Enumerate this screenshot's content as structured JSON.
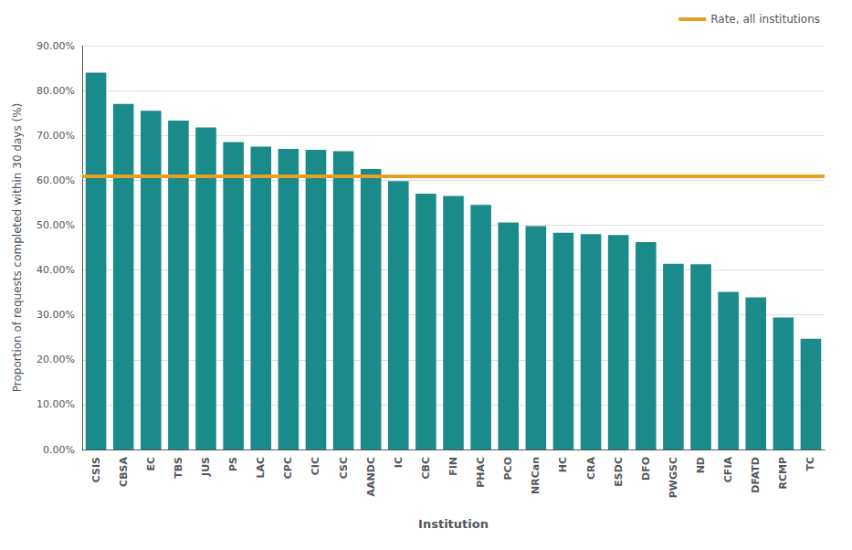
{
  "chart_data": {
    "type": "bar",
    "xlabel": "Institution",
    "ylabel": "Proportion of requests completed within 30 days (%)",
    "categories": [
      "CSIS",
      "CBSA",
      "EC",
      "TBS",
      "JUS",
      "PS",
      "LAC",
      "CPC",
      "CIC",
      "CSC",
      "AANDC",
      "IC",
      "CBC",
      "FIN",
      "PHAC",
      "PCO",
      "NRCan",
      "HC",
      "CRA",
      "ESDC",
      "DFO",
      "PWGSC",
      "ND",
      "CFIA",
      "DFATD",
      "RCMP",
      "TC"
    ],
    "values": [
      0.84,
      0.77,
      0.755,
      0.733,
      0.718,
      0.685,
      0.675,
      0.67,
      0.668,
      0.665,
      0.625,
      0.598,
      0.57,
      0.565,
      0.545,
      0.506,
      0.498,
      0.483,
      0.48,
      0.478,
      0.462,
      0.414,
      0.413,
      0.351,
      0.339,
      0.294,
      0.247
    ],
    "color": "#1a8a8a",
    "reference_line": {
      "value": 0.61,
      "label": "Rate, all institutions",
      "color": "#E8A020"
    },
    "ylim": [
      0.0,
      0.9
    ],
    "yticks": [
      {
        "value": 0.0,
        "label": "0.00%"
      },
      {
        "value": 0.1,
        "label": "10.00%"
      },
      {
        "value": 0.2,
        "label": "20.00%"
      },
      {
        "value": 0.3,
        "label": "30.00%"
      },
      {
        "value": 0.4,
        "label": "40.00%"
      },
      {
        "value": 0.5,
        "label": "50.00%"
      },
      {
        "value": 0.6,
        "label": "60.00%"
      },
      {
        "value": 0.7,
        "label": "70.00%"
      },
      {
        "value": 0.8,
        "label": "80.00%"
      },
      {
        "value": 0.9,
        "label": "90.00%"
      }
    ],
    "grid": true,
    "legend": "upper right"
  }
}
